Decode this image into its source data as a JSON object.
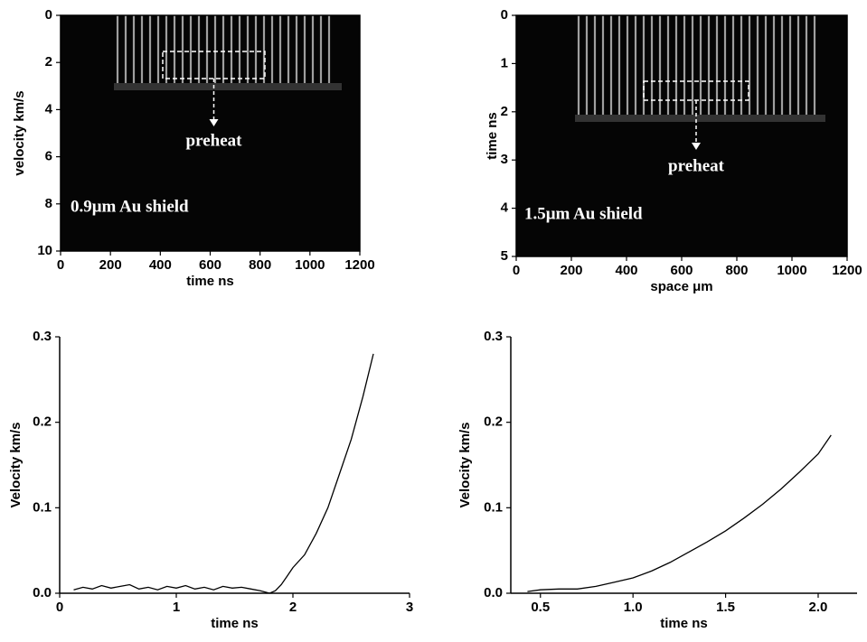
{
  "chart_data": [
    {
      "type": "image",
      "xlabel": "time ns",
      "ylabel": "velocity km/s",
      "xlim": [
        0,
        1200
      ],
      "xticks": [
        0,
        200,
        400,
        600,
        800,
        1000,
        1200
      ],
      "ylim": [
        10,
        0
      ],
      "yticks": [
        0,
        2,
        4,
        6,
        8,
        10
      ],
      "label": "0.9μm Au shield",
      "annotation": "preheat"
    },
    {
      "type": "image",
      "xlabel": "space μm",
      "ylabel": "time ns",
      "xlim": [
        0,
        1200
      ],
      "xticks": [
        0,
        200,
        400,
        600,
        800,
        1000,
        1200
      ],
      "ylim": [
        5,
        0
      ],
      "yticks": [
        0,
        1,
        2,
        3,
        4,
        5
      ],
      "label": "1.5μm Au shield",
      "annotation": "preheat"
    },
    {
      "type": "line",
      "xlabel": "time ns",
      "ylabel": "Velocity km/s",
      "xlim": [
        0,
        3
      ],
      "xticks": [
        0,
        1,
        2,
        3
      ],
      "ylim": [
        0,
        0.3
      ],
      "yticks": [
        {
          "value": 0,
          "label": "0.0"
        },
        0.1,
        0.2,
        0.3
      ],
      "series": [
        {
          "color": "#000000",
          "x": [
            0.12,
            0.2,
            0.28,
            0.36,
            0.44,
            0.52,
            0.6,
            0.68,
            0.76,
            0.84,
            0.92,
            1.0,
            1.08,
            1.16,
            1.24,
            1.32,
            1.4,
            1.48,
            1.56,
            1.64,
            1.72,
            1.8,
            1.85,
            1.9,
            1.95,
            2.0,
            2.1,
            2.2,
            2.3,
            2.4,
            2.5,
            2.6,
            2.69
          ],
          "values": [
            0.004,
            0.007,
            0.005,
            0.009,
            0.006,
            0.008,
            0.01,
            0.005,
            0.007,
            0.004,
            0.008,
            0.006,
            0.009,
            0.005,
            0.007,
            0.004,
            0.008,
            0.006,
            0.007,
            0.005,
            0.003,
            0.0,
            0.003,
            0.01,
            0.02,
            0.03,
            0.045,
            0.07,
            0.1,
            0.14,
            0.18,
            0.23,
            0.28
          ]
        }
      ]
    },
    {
      "type": "line",
      "xlabel": "time ns",
      "ylabel": "Velocity km/s",
      "xlim": [
        0.34,
        2.21
      ],
      "xticks": [
        0.5,
        {
          "value": 1,
          "label": "1.0"
        },
        1.5,
        {
          "value": 2,
          "label": "2.0"
        }
      ],
      "ylim": [
        0,
        0.3
      ],
      "yticks": [
        {
          "value": 0,
          "label": "0.0"
        },
        0.1,
        0.2,
        0.3
      ],
      "series": [
        {
          "color": "#000000",
          "x": [
            0.43,
            0.5,
            0.6,
            0.7,
            0.8,
            0.9,
            1.0,
            1.1,
            1.2,
            1.3,
            1.4,
            1.5,
            1.6,
            1.7,
            1.8,
            1.9,
            2.0,
            2.07
          ],
          "values": [
            0.002,
            0.004,
            0.005,
            0.005,
            0.008,
            0.013,
            0.018,
            0.026,
            0.036,
            0.048,
            0.06,
            0.073,
            0.088,
            0.104,
            0.122,
            0.142,
            0.163,
            0.185
          ]
        }
      ]
    }
  ]
}
